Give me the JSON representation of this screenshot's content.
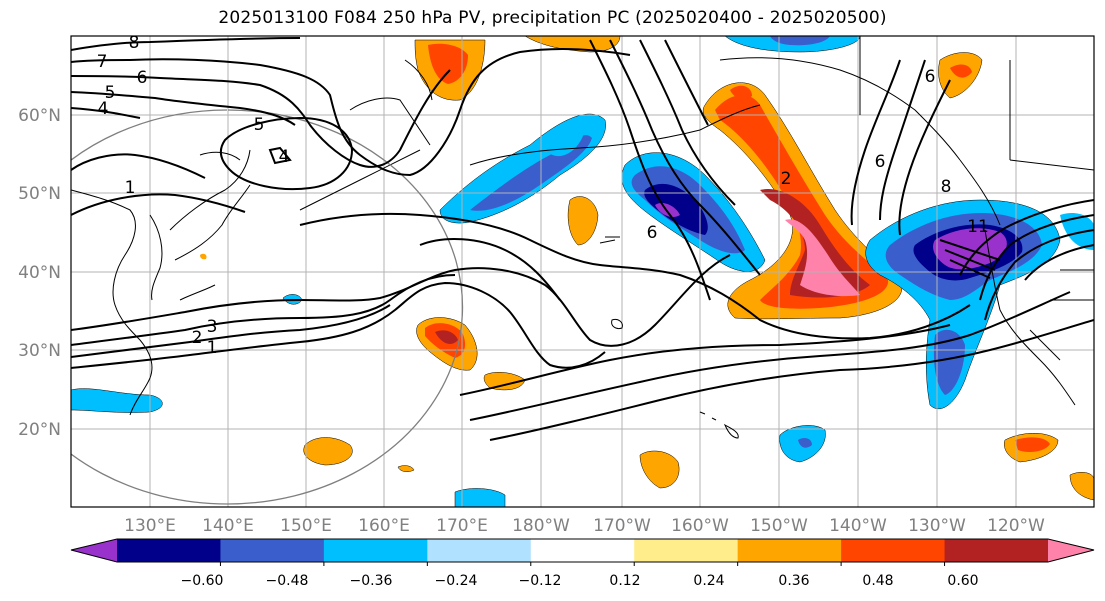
{
  "title": "2025013100 F084 250 hPa PV, precipitation PC (2025020400 - 2025020500)",
  "map": {
    "lat_labels": [
      "60°N",
      "50°N",
      "40°N",
      "30°N",
      "20°N"
    ],
    "lon_labels": [
      "130°E",
      "140°E",
      "150°E",
      "160°E",
      "170°E",
      "180°W",
      "170°W",
      "160°W",
      "150°W",
      "140°W",
      "130°W",
      "120°W"
    ],
    "contour_labels": [
      "8",
      "7",
      "6",
      "5",
      "4",
      "5",
      "4",
      "1",
      "3",
      "2",
      "1",
      "2",
      "6",
      "8",
      "6",
      "6",
      "11"
    ],
    "grid": true
  },
  "colorbar": {
    "tick_labels": [
      "−0.60",
      "−0.48",
      "−0.36",
      "−0.24",
      "−0.12",
      "0.12",
      "0.24",
      "0.36",
      "0.48",
      "0.60"
    ],
    "colors": [
      "#9932cc",
      "#00008b",
      "#3a5fcd",
      "#00bfff",
      "#b0e2ff",
      "#ffffff",
      "#ffec8b",
      "#ffa500",
      "#ff4500",
      "#b22222",
      "#ff82ab"
    ]
  }
}
